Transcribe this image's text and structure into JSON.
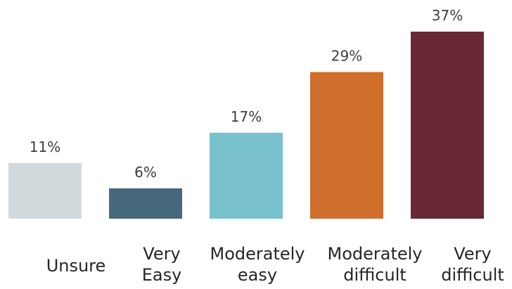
{
  "chart_data": {
    "type": "bar",
    "title": "",
    "xlabel": "",
    "ylabel": "",
    "ylim": [
      0,
      37
    ],
    "categories": [
      [
        "Unsure"
      ],
      [
        "Very",
        "Easy"
      ],
      [
        "Moderately",
        "easy"
      ],
      [
        "Moderately",
        "difficult"
      ],
      [
        "Very",
        "difficult"
      ]
    ],
    "values": [
      11,
      6,
      17,
      29,
      37
    ],
    "value_labels": [
      "11%",
      "6%",
      "17%",
      "29%",
      "37%"
    ],
    "colors": [
      "#d1dadc",
      "#46687b",
      "#78c0cc",
      "#cf6f2b",
      "#692835"
    ]
  }
}
